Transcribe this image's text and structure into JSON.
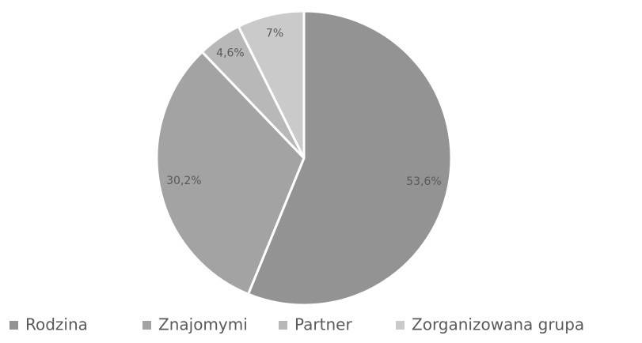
{
  "chart_data": {
    "type": "pie",
    "categories": [
      "Rodzina",
      "Znajomymi",
      "Partner",
      "Zorganizowana grupa"
    ],
    "values": [
      53.6,
      30.2,
      4.6,
      7
    ],
    "value_labels": [
      "53,6%",
      "30,2%",
      "4,6%",
      "7%"
    ],
    "colors": [
      "#939393",
      "#a3a3a3",
      "#b8b8b8",
      "#cacaca"
    ],
    "legend": "bottom"
  }
}
